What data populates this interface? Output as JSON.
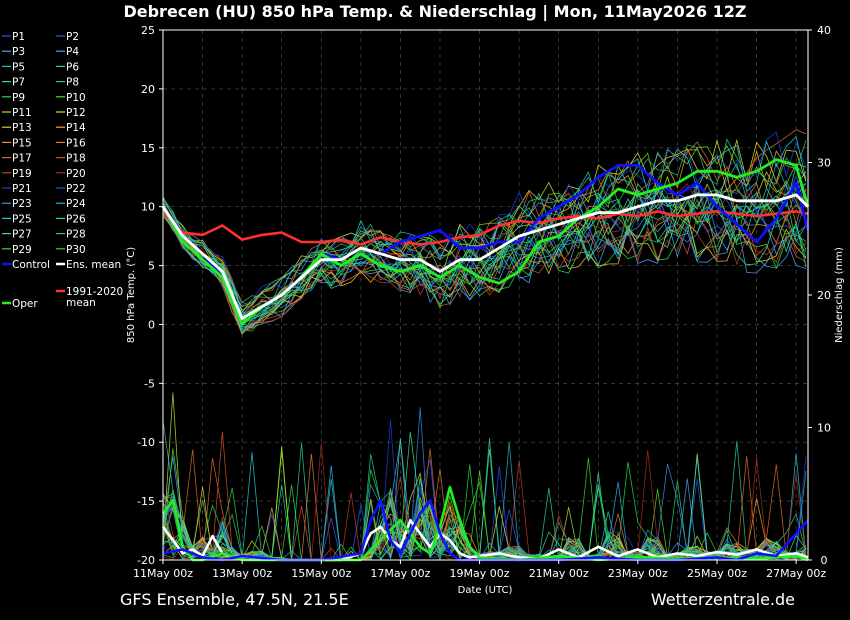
{
  "chart_data": {
    "type": "line",
    "title": "Debrecen  (HU)  850 hPa Temp. & Niederschlag | Mon, 11May2026 12Z",
    "xlabel": "Date (UTC)",
    "ylabel": "850 hPa Temp. (°C)",
    "y2label": "Niederschlag (mm)",
    "ylim": [
      -20,
      25
    ],
    "y2lim": [
      0,
      40
    ],
    "yticks": [
      25,
      20,
      15,
      10,
      5,
      0,
      -5,
      -10,
      -15,
      -20
    ],
    "y2ticks": [
      40,
      30,
      20,
      10,
      0
    ],
    "xlim_days": [
      0,
      16.3
    ],
    "x_ticks": [
      {
        "day": 0,
        "label": "11May 00z"
      },
      {
        "day": 2,
        "label": "13May 00z"
      },
      {
        "day": 4,
        "label": "15May 00z"
      },
      {
        "day": 6,
        "label": "17May 00z"
      },
      {
        "day": 8,
        "label": "19May 00z"
      },
      {
        "day": 10,
        "label": "21May 00z"
      },
      {
        "day": 12,
        "label": "23May 00z"
      },
      {
        "day": 14,
        "label": "25May 00z"
      },
      {
        "day": 16,
        "label": "27May 00z"
      }
    ],
    "grid": true,
    "legend_position": "left",
    "legend": [
      {
        "label": "P1",
        "color": "#3050ff"
      },
      {
        "label": "P2",
        "color": "#2a5cff"
      },
      {
        "label": "P3",
        "color": "#4aa0ff"
      },
      {
        "label": "P4",
        "color": "#33b0e8"
      },
      {
        "label": "P5",
        "color": "#26c6c6"
      },
      {
        "label": "P6",
        "color": "#22d29a"
      },
      {
        "label": "P7",
        "color": "#3ad6b0"
      },
      {
        "label": "P8",
        "color": "#2ecc71"
      },
      {
        "label": "P9",
        "color": "#22dd44"
      },
      {
        "label": "P10",
        "color": "#55e022"
      },
      {
        "label": "P11",
        "color": "#b6e52a"
      },
      {
        "label": "P12",
        "color": "#e0e02a"
      },
      {
        "label": "P13",
        "color": "#f0c828"
      },
      {
        "label": "P14",
        "color": "#f0a828"
      },
      {
        "label": "P15",
        "color": "#f09040"
      },
      {
        "label": "P16",
        "color": "#e07a30"
      },
      {
        "label": "P17",
        "color": "#e06a2a"
      },
      {
        "label": "P18",
        "color": "#d8502a"
      },
      {
        "label": "P19",
        "color": "#c83828"
      },
      {
        "label": "P20",
        "color": "#b02820"
      },
      {
        "label": "P21",
        "color": "#2040e0"
      },
      {
        "label": "P22",
        "color": "#1e5ae0"
      },
      {
        "label": "P23",
        "color": "#3a90e0"
      },
      {
        "label": "P24",
        "color": "#2ab0d0"
      },
      {
        "label": "P25",
        "color": "#20d0d0"
      },
      {
        "label": "P26",
        "color": "#20d8a0"
      },
      {
        "label": "P27",
        "color": "#36e090"
      },
      {
        "label": "P28",
        "color": "#28c860"
      },
      {
        "label": "P29",
        "color": "#20e050"
      },
      {
        "label": "P30",
        "color": "#30d830"
      },
      {
        "label": "Control",
        "color": "#1010ff"
      },
      {
        "label": "Ens. mean",
        "color": "#ffffff"
      },
      {
        "label": "Oper",
        "color": "#22ee22"
      },
      {
        "label": "1991-2020\nmean",
        "color": "#ff3030"
      }
    ],
    "series": [
      {
        "id": "mean",
        "name": "Ens. mean",
        "color": "#ffffff",
        "x": [
          0,
          0.5,
          1,
          1.5,
          2,
          2.5,
          3,
          3.5,
          4,
          4.5,
          5,
          5.5,
          6,
          6.5,
          7,
          7.5,
          8,
          8.5,
          9,
          9.5,
          10,
          10.5,
          11,
          11.5,
          12,
          12.5,
          13,
          13.5,
          14,
          14.5,
          15,
          15.5,
          16,
          16.3
        ],
        "y": [
          10,
          7.5,
          6,
          4.5,
          0.5,
          1.5,
          2.5,
          4,
          5.5,
          5.5,
          6.5,
          6,
          5.5,
          5.5,
          4.5,
          5.5,
          5.5,
          6.5,
          7.5,
          8,
          8.5,
          9,
          9.5,
          9.5,
          10,
          10.5,
          10.5,
          11,
          11,
          10.5,
          10.5,
          10.5,
          11,
          10
        ]
      },
      {
        "id": "climo",
        "name": "1991-2020 mean",
        "color": "#ff3030",
        "x": [
          0,
          0.5,
          1,
          1.5,
          2,
          2.5,
          3,
          3.5,
          4,
          4.5,
          5,
          5.5,
          6,
          6.5,
          7,
          7.5,
          8,
          8.5,
          9,
          9.5,
          10,
          10.5,
          11,
          11.5,
          12,
          12.5,
          13,
          13.5,
          14,
          14.5,
          15,
          15.5,
          16,
          16.3
        ],
        "y": [
          9.5,
          7.8,
          7.6,
          8.4,
          7.2,
          7.6,
          7.8,
          7,
          7,
          7.2,
          6.8,
          7.4,
          7,
          6.8,
          7,
          7.4,
          7.6,
          8.4,
          8.8,
          8.6,
          9,
          9.2,
          9,
          9.4,
          9.2,
          9.6,
          9.2,
          9.4,
          9.6,
          9.4,
          9.2,
          9.4,
          9.6,
          9.4
        ]
      },
      {
        "id": "control",
        "name": "Control",
        "color": "#1010ff",
        "x": [
          0,
          0.5,
          1,
          1.5,
          2,
          2.5,
          3,
          3.5,
          4,
          4.5,
          5,
          5.5,
          6,
          6.5,
          7,
          7.5,
          8,
          8.5,
          9,
          9.5,
          10,
          10.5,
          11,
          11.5,
          12,
          12.5,
          13,
          13.5,
          14,
          14.5,
          15,
          15.5,
          16,
          16.3
        ],
        "y": [
          10,
          7.5,
          6,
          4,
          0,
          1.5,
          2.5,
          4,
          6,
          5.5,
          6.5,
          6,
          7,
          7.5,
          8,
          6.5,
          6.5,
          7,
          7,
          9,
          10,
          11,
          12.5,
          13.5,
          13.5,
          12,
          11,
          12,
          10,
          8.5,
          7,
          9,
          12,
          8
        ]
      },
      {
        "id": "oper",
        "name": "Oper",
        "color": "#22ee22",
        "x": [
          0,
          0.5,
          1,
          1.5,
          2,
          2.5,
          3,
          3.5,
          4,
          4.5,
          5,
          5.5,
          6,
          6.5,
          7,
          7.5,
          8,
          8.5,
          9,
          9.5,
          10,
          10.5,
          11,
          11.5,
          12,
          12.5,
          13,
          13.5,
          14,
          14.5,
          15,
          15.5,
          16,
          16.3
        ],
        "y": [
          10,
          7,
          5.5,
          4,
          0,
          1.5,
          2.5,
          4,
          6,
          5,
          6,
          5,
          4.5,
          5,
          4,
          5,
          4,
          3.5,
          4.5,
          7,
          7.5,
          9,
          10,
          11.5,
          11,
          11.5,
          12,
          13,
          13,
          12.5,
          13,
          14,
          13.5,
          10
        ]
      }
    ],
    "precip_series": [
      {
        "id": "precip_mean",
        "name": "Ens. mean",
        "color": "#ffffff",
        "x": [
          0,
          0.25,
          0.5,
          0.75,
          1,
          1.25,
          1.5,
          1.75,
          2,
          2.5,
          3,
          4,
          4.5,
          5,
          5.25,
          5.5,
          5.75,
          6,
          6.25,
          6.5,
          6.75,
          7,
          7.25,
          7.5,
          7.75,
          8,
          8.5,
          9,
          9.5,
          10,
          10.5,
          11,
          11.5,
          12,
          12.5,
          13,
          13.5,
          14,
          14.5,
          15,
          15.5,
          16,
          16.3
        ],
        "y": [
          2.5,
          1.5,
          0.5,
          0.8,
          0.3,
          1.8,
          0.5,
          0.2,
          0.3,
          0.1,
          0,
          0,
          0,
          0.5,
          2,
          2.5,
          1.5,
          1,
          3,
          2,
          1,
          2,
          1.5,
          0.5,
          0.2,
          0.3,
          0.5,
          0.2,
          0.1,
          0.8,
          0.2,
          1,
          0.3,
          0.8,
          0.2,
          0.5,
          0.3,
          0.6,
          0.4,
          0.8,
          0.3,
          0.5,
          0.2
        ]
      },
      {
        "id": "precip_oper",
        "name": "Oper",
        "color": "#22ee22",
        "x": [
          0,
          0.25,
          0.5,
          0.75,
          1,
          1.5,
          2,
          3,
          4,
          5,
          5.5,
          6,
          6.25,
          6.5,
          6.75,
          7,
          7.25,
          7.5,
          7.75,
          8,
          9,
          10,
          11,
          12,
          13,
          14,
          15,
          16,
          16.3
        ],
        "y": [
          3.5,
          4.5,
          1,
          0,
          0,
          0.5,
          0,
          0,
          0,
          0,
          1.5,
          3,
          2,
          1,
          0.5,
          2.5,
          5.5,
          3,
          1,
          0.2,
          0,
          0.3,
          0,
          0.2,
          0.1,
          0.2,
          0.1,
          0.3,
          0
        ]
      },
      {
        "id": "precip_control",
        "name": "Control",
        "color": "#1010ff",
        "x": [
          0,
          0.5,
          1,
          1.5,
          2,
          3,
          4,
          5,
          5.25,
          5.5,
          5.75,
          6,
          6.5,
          6.75,
          7,
          7.25,
          7.5,
          8,
          9,
          10,
          11,
          12,
          13,
          14,
          14.5,
          15,
          15.5,
          16,
          16.3
        ],
        "y": [
          0.5,
          0.8,
          0.2,
          0,
          0.3,
          0,
          0,
          0.5,
          3,
          4.5,
          1.5,
          0.5,
          3.5,
          4.5,
          2,
          0.5,
          0,
          0,
          0,
          0,
          0.2,
          0,
          0,
          0.2,
          0,
          0.5,
          0.3,
          2,
          3
        ]
      }
    ]
  },
  "footer": {
    "left": "GFS Ensemble, 47.5N, 21.5E",
    "right": "Wetterzentrale.de"
  }
}
